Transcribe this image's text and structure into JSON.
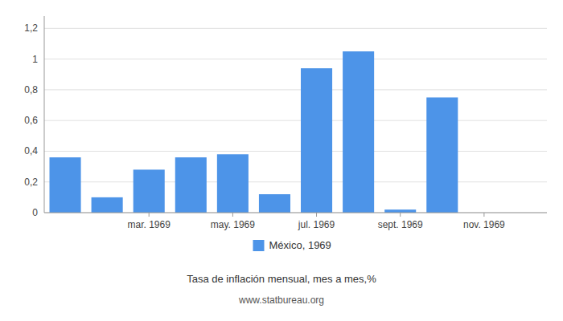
{
  "chart_data": {
    "type": "bar",
    "title": "Tasa de inflación mensual, mes a mes,%",
    "subtitle": "www.statbureau.org",
    "categories": [
      null,
      null,
      "mar. 1969",
      null,
      "may. 1969",
      null,
      "jul. 1969",
      null,
      "sept. 1969",
      null,
      "nov. 1969",
      null
    ],
    "series": [
      {
        "name": "México, 1969",
        "color": "#4d94e8",
        "values": [
          0.36,
          0.1,
          0.28,
          0.36,
          0.38,
          0.12,
          0.94,
          1.05,
          0.02,
          0.75,
          0.0,
          0.0
        ]
      }
    ],
    "ylim": [
      0,
      1.28
    ],
    "yticks": [
      0,
      {
        "value": 0.2,
        "label": "0,2"
      },
      {
        "value": 0.4,
        "label": "0,4"
      },
      {
        "value": 0.6,
        "label": "0,6"
      },
      {
        "value": 0.8,
        "label": "0,8"
      },
      1,
      {
        "value": 1.2,
        "label": "1,2"
      }
    ],
    "grid": true,
    "legend": "bottom"
  }
}
